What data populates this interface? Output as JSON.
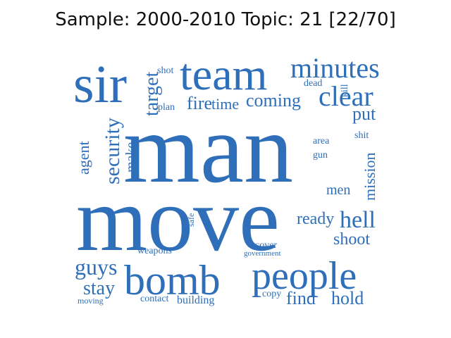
{
  "title": "Sample: 2000-2010 Topic: 21 [22/70]",
  "colors": {
    "word": "#2f6fba",
    "title": "#111111"
  },
  "words": {
    "man": "man",
    "move": "move",
    "team": "team",
    "sir": "sir",
    "minutes": "minutes",
    "clear": "clear",
    "people": "people",
    "bomb": "bomb",
    "security": "security",
    "target": "target",
    "fire": "fire",
    "time": "time",
    "coming": "coming",
    "put": "put",
    "hell": "hell",
    "ready": "ready",
    "shoot": "shoot",
    "guys": "guys",
    "stay": "stay",
    "find": "find",
    "hold": "hold",
    "mission": "mission",
    "agent": "agent",
    "make": "make",
    "men": "men",
    "shot": "shot",
    "plan": "plan",
    "dead": "dead",
    "kill": "kill",
    "shit": "shit",
    "area": "area",
    "gun": "gun",
    "safe": "safe",
    "cover": "cover",
    "government": "government",
    "weapons": "weapons",
    "moving": "moving",
    "contact": "contact",
    "building": "building",
    "copy": "copy"
  }
}
